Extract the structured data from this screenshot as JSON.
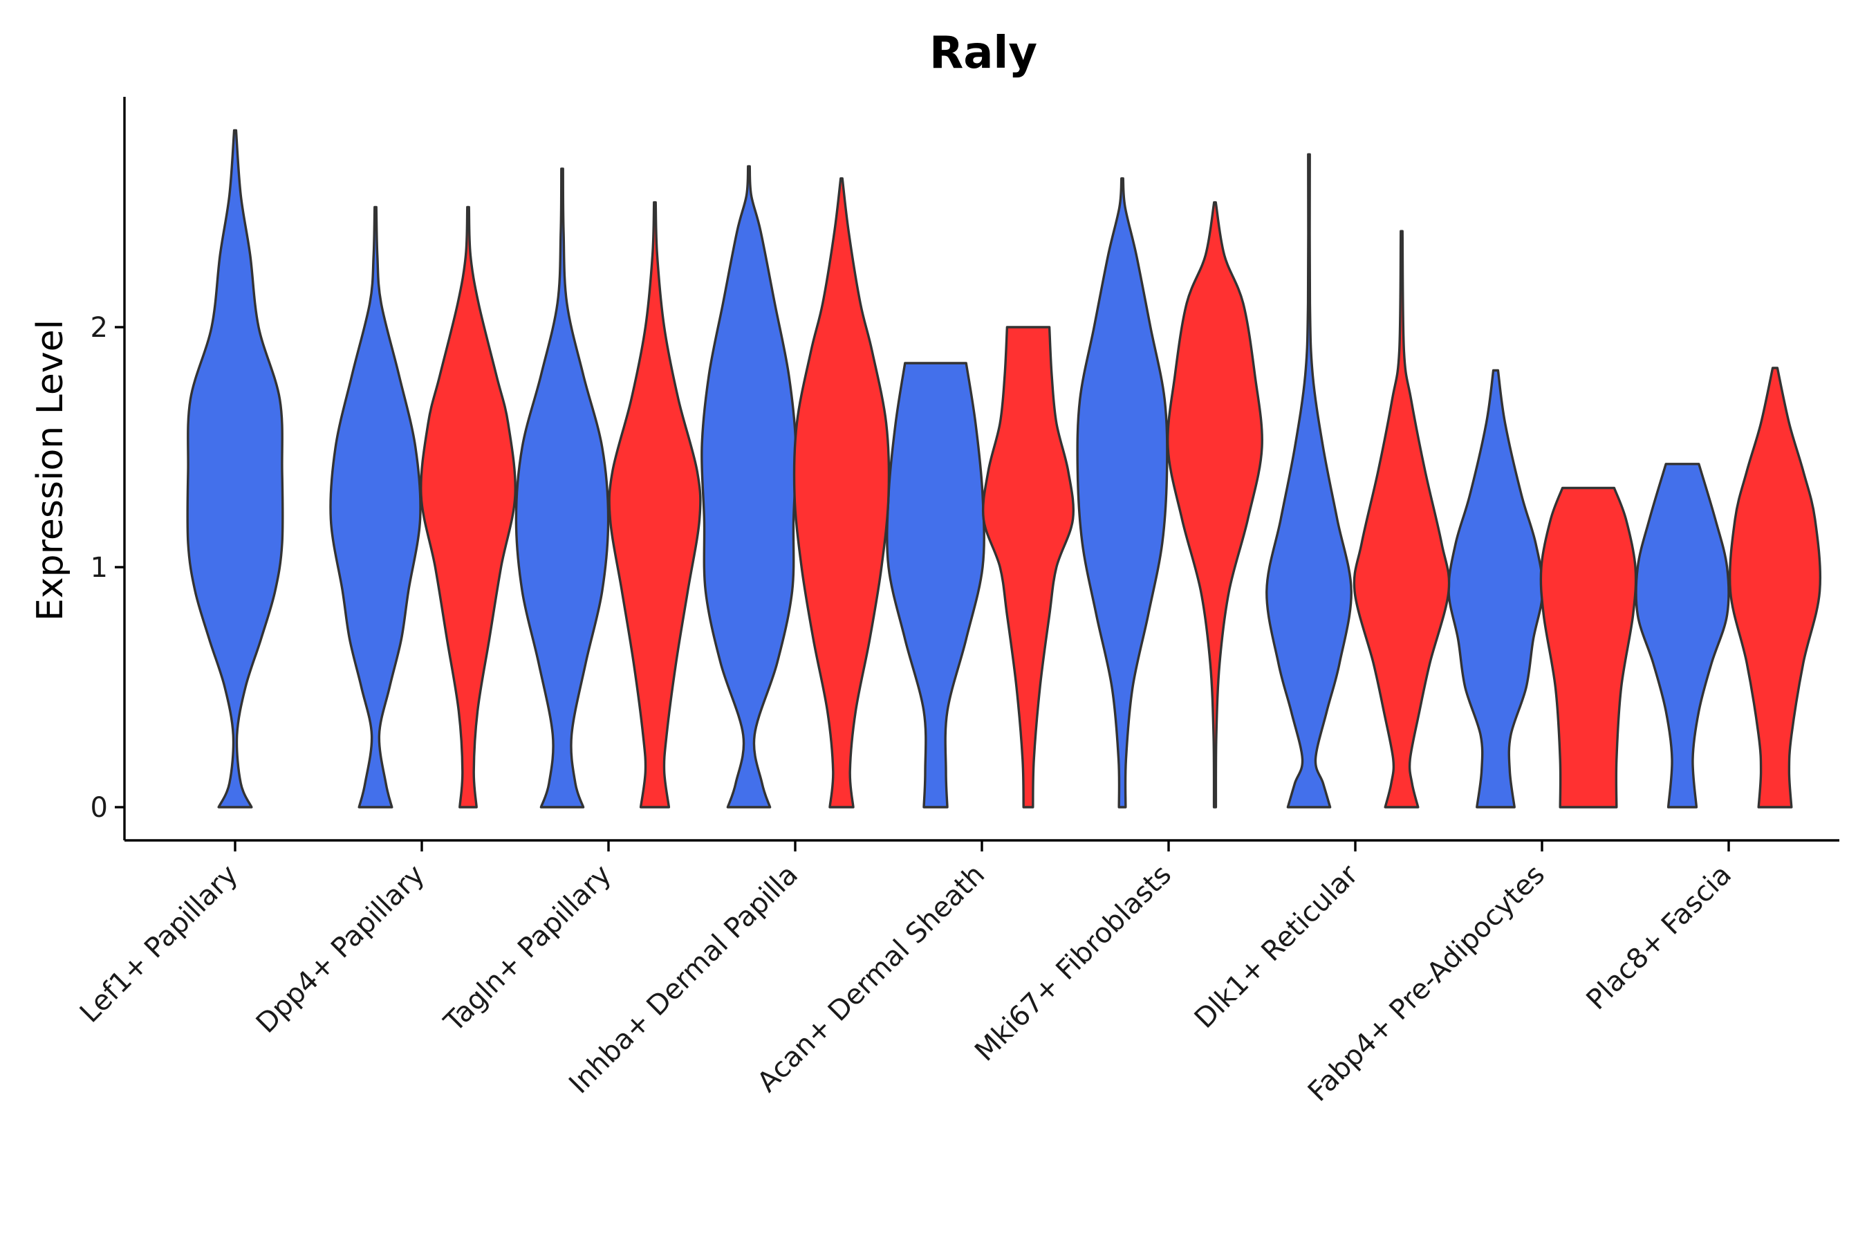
{
  "chart_data": {
    "type": "violin",
    "title": "Raly",
    "xlabel": "",
    "ylabel": "Expression Level",
    "ylim": [
      -0.14,
      2.96
    ],
    "yticks": [
      0,
      1,
      2
    ],
    "grid": false,
    "legend": "none",
    "categories": [
      "Lef1+ Papillary",
      "Dpp4+ Papillary",
      "Tagln+ Papillary",
      "Inhba+ Dermal Papilla",
      "Acan+ Dermal Sheath",
      "Mki67+ Fibroblasts",
      "Dlk1+ Reticular",
      "Fabp4+ Pre-Adipocytes",
      "Plac8+ Fascia"
    ],
    "series": [
      {
        "color": "#4370EB",
        "violins": [
          {
            "category": "Lef1+ Papillary",
            "min": 0.0,
            "max": 2.82,
            "profile": [
              [
                0,
                0.35
              ],
              [
                0.1,
                0.12
              ],
              [
                0.3,
                0.04
              ],
              [
                0.5,
                0.22
              ],
              [
                0.7,
                0.55
              ],
              [
                0.9,
                0.85
              ],
              [
                1.1,
                1.0
              ],
              [
                1.4,
                1.0
              ],
              [
                1.7,
                0.95
              ],
              [
                2.0,
                0.5
              ],
              [
                2.3,
                0.32
              ],
              [
                2.55,
                0.12
              ],
              [
                2.82,
                0.02
              ]
            ]
          },
          {
            "category": "Dpp4+ Papillary",
            "min": 0.0,
            "max": 2.5,
            "profile": [
              [
                0,
                0.35
              ],
              [
                0.1,
                0.22
              ],
              [
                0.3,
                0.08
              ],
              [
                0.5,
                0.3
              ],
              [
                0.7,
                0.55
              ],
              [
                0.9,
                0.7
              ],
              [
                1.2,
                0.95
              ],
              [
                1.5,
                0.85
              ],
              [
                1.8,
                0.5
              ],
              [
                2.1,
                0.12
              ],
              [
                2.3,
                0.04
              ],
              [
                2.5,
                0.01
              ]
            ]
          },
          {
            "category": "Tagln+ Papillary",
            "min": 0.0,
            "max": 2.66,
            "profile": [
              [
                0,
                0.45
              ],
              [
                0.1,
                0.28
              ],
              [
                0.3,
                0.2
              ],
              [
                0.6,
                0.5
              ],
              [
                0.9,
                0.85
              ],
              [
                1.2,
                0.98
              ],
              [
                1.5,
                0.85
              ],
              [
                1.8,
                0.45
              ],
              [
                2.1,
                0.1
              ],
              [
                2.4,
                0.03
              ],
              [
                2.66,
                0.01
              ]
            ]
          },
          {
            "category": "Inhba+ Dermal Papilla",
            "min": 0.0,
            "max": 2.67,
            "profile": [
              [
                0,
                0.45
              ],
              [
                0.1,
                0.28
              ],
              [
                0.3,
                0.12
              ],
              [
                0.6,
                0.6
              ],
              [
                0.9,
                0.92
              ],
              [
                1.2,
                0.95
              ],
              [
                1.5,
                1.0
              ],
              [
                1.8,
                0.85
              ],
              [
                2.1,
                0.55
              ],
              [
                2.4,
                0.25
              ],
              [
                2.55,
                0.05
              ],
              [
                2.67,
                0.01
              ]
            ]
          },
          {
            "category": "Acan+ Dermal Sheath",
            "min": 0.0,
            "max": 1.85,
            "profile": [
              [
                0,
                0.25
              ],
              [
                0.15,
                0.22
              ],
              [
                0.4,
                0.25
              ],
              [
                0.7,
                0.65
              ],
              [
                1.0,
                1.0
              ],
              [
                1.3,
                1.0
              ],
              [
                1.6,
                0.85
              ],
              [
                1.85,
                0.65
              ]
            ]
          },
          {
            "category": "Mki67+ Fibroblasts",
            "min": 0.0,
            "max": 2.62,
            "profile": [
              [
                0,
                0.07
              ],
              [
                0.2,
                0.08
              ],
              [
                0.5,
                0.22
              ],
              [
                0.8,
                0.55
              ],
              [
                1.1,
                0.85
              ],
              [
                1.4,
                0.95
              ],
              [
                1.7,
                0.9
              ],
              [
                2.0,
                0.6
              ],
              [
                2.3,
                0.3
              ],
              [
                2.5,
                0.06
              ],
              [
                2.62,
                0.01
              ]
            ]
          },
          {
            "category": "Dlk1+ Reticular",
            "min": 0.0,
            "max": 2.72,
            "profile": [
              [
                0,
                0.45
              ],
              [
                0.1,
                0.3
              ],
              [
                0.2,
                0.14
              ],
              [
                0.4,
                0.38
              ],
              [
                0.6,
                0.65
              ],
              [
                0.9,
                0.9
              ],
              [
                1.2,
                0.6
              ],
              [
                1.5,
                0.3
              ],
              [
                1.8,
                0.08
              ],
              [
                2.1,
                0.02
              ],
              [
                2.72,
                0.01
              ]
            ]
          },
          {
            "category": "Fabp4+ Pre-Adipocytes",
            "min": 0.0,
            "max": 1.82,
            "profile": [
              [
                0,
                0.4
              ],
              [
                0.15,
                0.3
              ],
              [
                0.3,
                0.32
              ],
              [
                0.5,
                0.65
              ],
              [
                0.7,
                0.8
              ],
              [
                0.9,
                1.0
              ],
              [
                1.1,
                0.85
              ],
              [
                1.3,
                0.55
              ],
              [
                1.6,
                0.2
              ],
              [
                1.82,
                0.05
              ]
            ]
          },
          {
            "category": "Plac8+ Fascia",
            "min": 0.0,
            "max": 1.43,
            "profile": [
              [
                0,
                0.3
              ],
              [
                0.2,
                0.22
              ],
              [
                0.4,
                0.35
              ],
              [
                0.6,
                0.62
              ],
              [
                0.8,
                0.95
              ],
              [
                1.0,
                0.95
              ],
              [
                1.2,
                0.7
              ],
              [
                1.43,
                0.35
              ]
            ]
          }
        ]
      },
      {
        "color": "#FF3131",
        "violins": [
          {
            "category": "Dpp4+ Papillary",
            "min": 0.0,
            "max": 2.5,
            "profile": [
              [
                0,
                0.18
              ],
              [
                0.15,
                0.12
              ],
              [
                0.4,
                0.2
              ],
              [
                0.7,
                0.45
              ],
              [
                1.0,
                0.7
              ],
              [
                1.3,
                1.0
              ],
              [
                1.6,
                0.85
              ],
              [
                1.8,
                0.6
              ],
              [
                2.1,
                0.22
              ],
              [
                2.3,
                0.05
              ],
              [
                2.5,
                0.01
              ]
            ]
          },
          {
            "category": "Tagln+ Papillary",
            "min": 0.0,
            "max": 2.52,
            "profile": [
              [
                0,
                0.3
              ],
              [
                0.15,
                0.2
              ],
              [
                0.3,
                0.25
              ],
              [
                0.6,
                0.45
              ],
              [
                0.9,
                0.7
              ],
              [
                1.2,
                0.95
              ],
              [
                1.4,
                0.9
              ],
              [
                1.7,
                0.5
              ],
              [
                2.0,
                0.2
              ],
              [
                2.3,
                0.05
              ],
              [
                2.52,
                0.01
              ]
            ]
          },
          {
            "category": "Inhba+ Dermal Papilla",
            "min": 0.0,
            "max": 2.62,
            "profile": [
              [
                0,
                0.25
              ],
              [
                0.15,
                0.18
              ],
              [
                0.4,
                0.3
              ],
              [
                0.7,
                0.6
              ],
              [
                1.0,
                0.85
              ],
              [
                1.3,
                1.0
              ],
              [
                1.6,
                0.95
              ],
              [
                1.9,
                0.65
              ],
              [
                2.1,
                0.4
              ],
              [
                2.4,
                0.15
              ],
              [
                2.62,
                0.01
              ]
            ]
          },
          {
            "category": "Acan+ Dermal Sheath",
            "min": 0.0,
            "max": 2.0,
            "profile": [
              [
                0,
                0.1
              ],
              [
                0.2,
                0.12
              ],
              [
                0.5,
                0.25
              ],
              [
                0.8,
                0.45
              ],
              [
                1.0,
                0.6
              ],
              [
                1.2,
                0.95
              ],
              [
                1.4,
                0.85
              ],
              [
                1.6,
                0.6
              ],
              [
                1.8,
                0.5
              ],
              [
                2.0,
                0.45
              ]
            ]
          },
          {
            "category": "Mki67+ Fibroblasts",
            "min": 0.0,
            "max": 2.52,
            "profile": [
              [
                0,
                0.02
              ],
              [
                0.3,
                0.03
              ],
              [
                0.6,
                0.1
              ],
              [
                0.9,
                0.3
              ],
              [
                1.2,
                0.7
              ],
              [
                1.5,
                1.0
              ],
              [
                1.8,
                0.85
              ],
              [
                2.1,
                0.6
              ],
              [
                2.3,
                0.2
              ],
              [
                2.52,
                0.01
              ]
            ]
          },
          {
            "category": "Dlk1+ Reticular",
            "min": 0.0,
            "max": 2.4,
            "profile": [
              [
                0,
                0.35
              ],
              [
                0.1,
                0.22
              ],
              [
                0.2,
                0.18
              ],
              [
                0.4,
                0.38
              ],
              [
                0.6,
                0.6
              ],
              [
                0.9,
                1.0
              ],
              [
                1.1,
                0.85
              ],
              [
                1.4,
                0.5
              ],
              [
                1.7,
                0.2
              ],
              [
                1.9,
                0.05
              ],
              [
                2.4,
                0.01
              ]
            ]
          },
          {
            "category": "Fabp4+ Pre-Adipocytes",
            "min": 0.0,
            "max": 1.33,
            "profile": [
              [
                0,
                0.6
              ],
              [
                0.2,
                0.6
              ],
              [
                0.5,
                0.7
              ],
              [
                0.8,
                0.95
              ],
              [
                1.0,
                1.0
              ],
              [
                1.2,
                0.8
              ],
              [
                1.33,
                0.55
              ]
            ]
          },
          {
            "category": "Plac8+ Fascia",
            "min": 0.0,
            "max": 1.83,
            "profile": [
              [
                0,
                0.35
              ],
              [
                0.15,
                0.3
              ],
              [
                0.3,
                0.35
              ],
              [
                0.6,
                0.6
              ],
              [
                0.9,
                0.95
              ],
              [
                1.2,
                0.85
              ],
              [
                1.4,
                0.6
              ],
              [
                1.6,
                0.3
              ],
              [
                1.83,
                0.05
              ]
            ]
          }
        ]
      }
    ]
  }
}
